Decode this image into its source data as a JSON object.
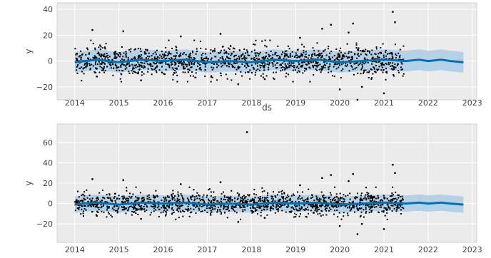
{
  "chart_data": [
    {
      "type": "scatter",
      "xlabel": "ds",
      "ylabel": "y",
      "xlim": [
        2013.6,
        2023.1
      ],
      "ylim": [
        -30,
        45
      ],
      "xticks": [
        2014,
        2015,
        2016,
        2017,
        2018,
        2019,
        2020,
        2021,
        2022,
        2023
      ],
      "yticks": [
        -20,
        0,
        20,
        40
      ],
      "ytick_labels": [
        "−20",
        "0",
        "20",
        "40"
      ],
      "grid": true,
      "history_end": 2021.45,
      "forecast_end": 2022.8,
      "series": [
        {
          "role": "observed",
          "color": "#000000",
          "x": [
            2014.4,
            2015.1,
            2016.4,
            2017.3,
            2019.1,
            2019.6,
            2019.8,
            2020.2,
            2020.3,
            2020.5,
            2021.2,
            2021.25,
            2020.0,
            2020.4,
            2014.5,
            2015.5,
            2017.7,
            2018.3,
            2021.0
          ],
          "y": [
            24,
            23,
            19,
            21,
            18,
            25,
            28,
            22,
            29,
            -20,
            38,
            30,
            -22,
            -30,
            -12,
            -15,
            -18,
            -14,
            -25
          ]
        },
        {
          "role": "forecast",
          "color": "#0072b2",
          "x": [
            2014.0,
            2014.5,
            2015.0,
            2015.5,
            2016.0,
            2016.5,
            2017.0,
            2017.5,
            2018.0,
            2018.5,
            2019.0,
            2019.5,
            2020.0,
            2020.5,
            2021.0,
            2021.5,
            2021.8,
            2022.0,
            2022.3,
            2022.5,
            2022.8
          ],
          "y": [
            -1,
            1,
            -1,
            1,
            0,
            1,
            -1,
            0,
            -1,
            1,
            0,
            1,
            -1,
            0,
            1,
            0,
            1,
            0,
            1,
            0,
            -1
          ]
        },
        {
          "role": "uncertainty",
          "color": "#aacde8",
          "band": 8
        }
      ]
    },
    {
      "type": "scatter",
      "xlabel": "",
      "ylabel": "y",
      "xlim": [
        2013.6,
        2023.1
      ],
      "ylim": [
        -38,
        78
      ],
      "xticks": [
        2014,
        2015,
        2016,
        2017,
        2018,
        2019,
        2020,
        2021,
        2022,
        2023
      ],
      "yticks": [
        -20,
        0,
        20,
        40,
        60
      ],
      "ytick_labels": [
        "−20",
        "0",
        "20",
        "40",
        "60"
      ],
      "grid": true,
      "history_end": 2021.45,
      "forecast_end": 2022.8,
      "series": [
        {
          "role": "observed",
          "color": "#000000",
          "x": [
            2017.9,
            2014.4,
            2015.1,
            2016.4,
            2017.3,
            2019.1,
            2019.6,
            2019.8,
            2020.2,
            2020.3,
            2020.5,
            2021.2,
            2021.25,
            2020.0,
            2020.4,
            2014.5,
            2015.5,
            2017.7,
            2018.3,
            2021.0
          ],
          "y": [
            70,
            24,
            23,
            19,
            21,
            18,
            25,
            28,
            22,
            29,
            -20,
            38,
            30,
            -22,
            -30,
            -12,
            -15,
            -18,
            -14,
            -25
          ]
        },
        {
          "role": "forecast",
          "color": "#0072b2",
          "x": [
            2014.0,
            2014.5,
            2015.0,
            2015.5,
            2016.0,
            2016.5,
            2017.0,
            2017.5,
            2018.0,
            2018.5,
            2019.0,
            2019.5,
            2020.0,
            2020.5,
            2021.0,
            2021.5,
            2021.8,
            2022.0,
            2022.3,
            2022.5,
            2022.8
          ],
          "y": [
            -1,
            1,
            -1,
            1,
            0,
            1,
            -1,
            0,
            -1,
            1,
            0,
            1,
            -1,
            0,
            1,
            0,
            1,
            0,
            1,
            0,
            -1
          ]
        },
        {
          "role": "uncertainty",
          "color": "#aacde8",
          "band": 8
        }
      ]
    }
  ]
}
